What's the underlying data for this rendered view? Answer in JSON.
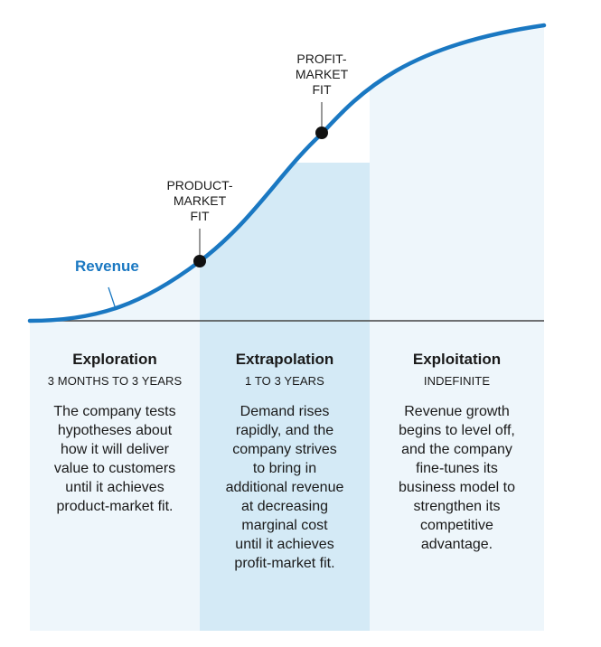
{
  "labels": {
    "revenue": "Revenue",
    "product_market_fit": "PRODUCT-\nMARKET\nFIT",
    "profit_market_fit": "PROFIT-\nMARKET\nFIT"
  },
  "phases": [
    {
      "title": "Exploration",
      "duration": "3 MONTHS TO 3 YEARS",
      "description": "The company tests\nhypotheses about\nhow it will deliver\nvalue to customers\nuntil it achieves\nproduct-market fit."
    },
    {
      "title": "Extrapolation",
      "duration": "1 TO 3 YEARS",
      "description": "Demand rises\nrapidly, and the\ncompany strives\nto bring in\nadditional revenue\nat decreasing\nmarginal cost\nuntil it achieves\nprofit-market fit."
    },
    {
      "title": "Exploitation",
      "duration": "INDEFINITE",
      "description": "Revenue growth\nbegins to level off,\nand the company\nfine-tunes its\nbusiness model to\nstrengthen its\ncompetitive\nadvantage."
    }
  ],
  "colors": {
    "curve": "#1a78c2",
    "phase_light": "#eef6fb",
    "phase_dark": "#d4eaf6",
    "baseline": "#444444",
    "marker": "#111111"
  }
}
